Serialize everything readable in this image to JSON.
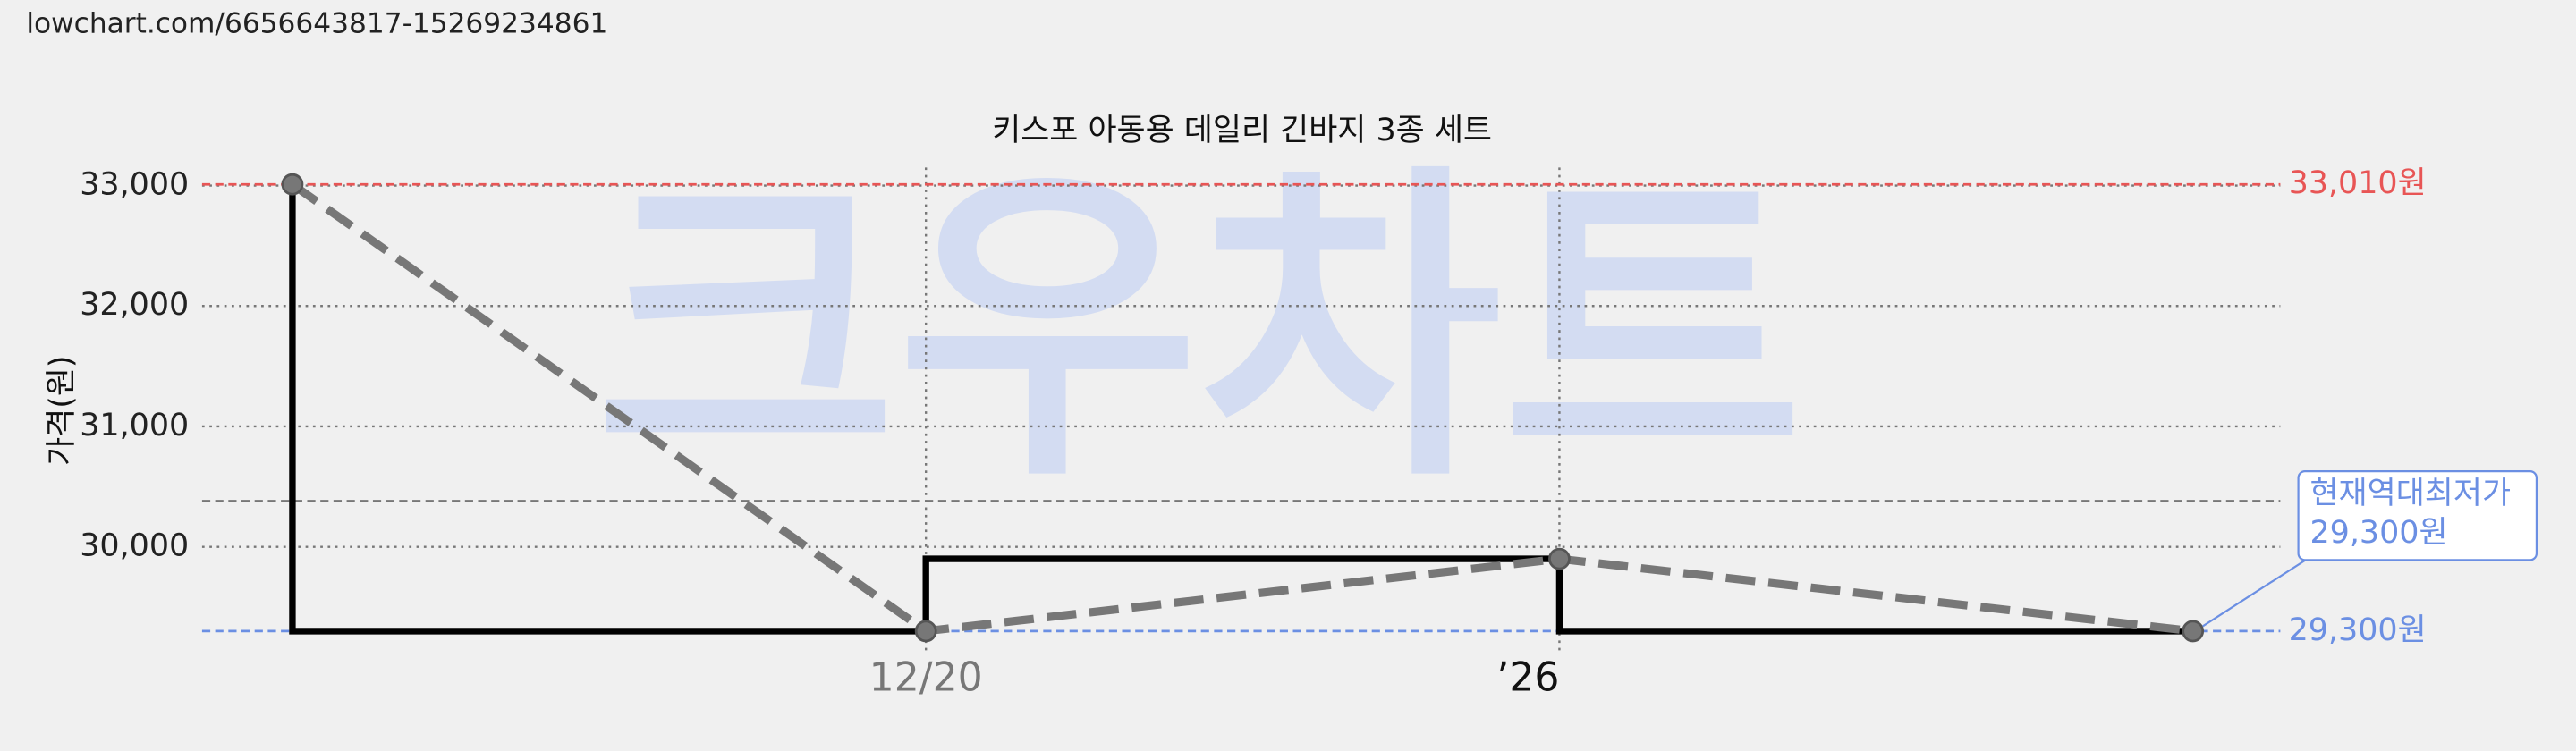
{
  "url": "lowchart.com/6656643817-15269234861",
  "chart_data": {
    "type": "line",
    "title": "키스포 아동용 데일리 긴바지 3종 세트",
    "y_label": "가격(원)",
    "watermark": "크우차트",
    "categories": [
      null,
      "12/20",
      "’26",
      null
    ],
    "values": [
      33010,
      29300,
      29900,
      29300
    ],
    "color": "#777777",
    "step_color": "#000000",
    "ylim": [
      29100,
      33150
    ],
    "yticks": [
      {
        "value": 30000,
        "label": "30,000"
      },
      {
        "value": 31000,
        "label": "31,000"
      },
      {
        "value": 32000,
        "label": "32,000"
      },
      {
        "value": 33000,
        "label": "33,000"
      }
    ],
    "grid": true,
    "reference_lines": [
      {
        "value": 33010,
        "label": "33,010원",
        "color": "#e85555"
      },
      {
        "value": 30380,
        "color": "#777777"
      },
      {
        "value": 29300,
        "label": "29,300원",
        "color": "#6b8fe3"
      }
    ],
    "annotation": {
      "lines": [
        "현재역대최저가",
        "29,300원"
      ],
      "color": "#6b8fe3"
    }
  }
}
